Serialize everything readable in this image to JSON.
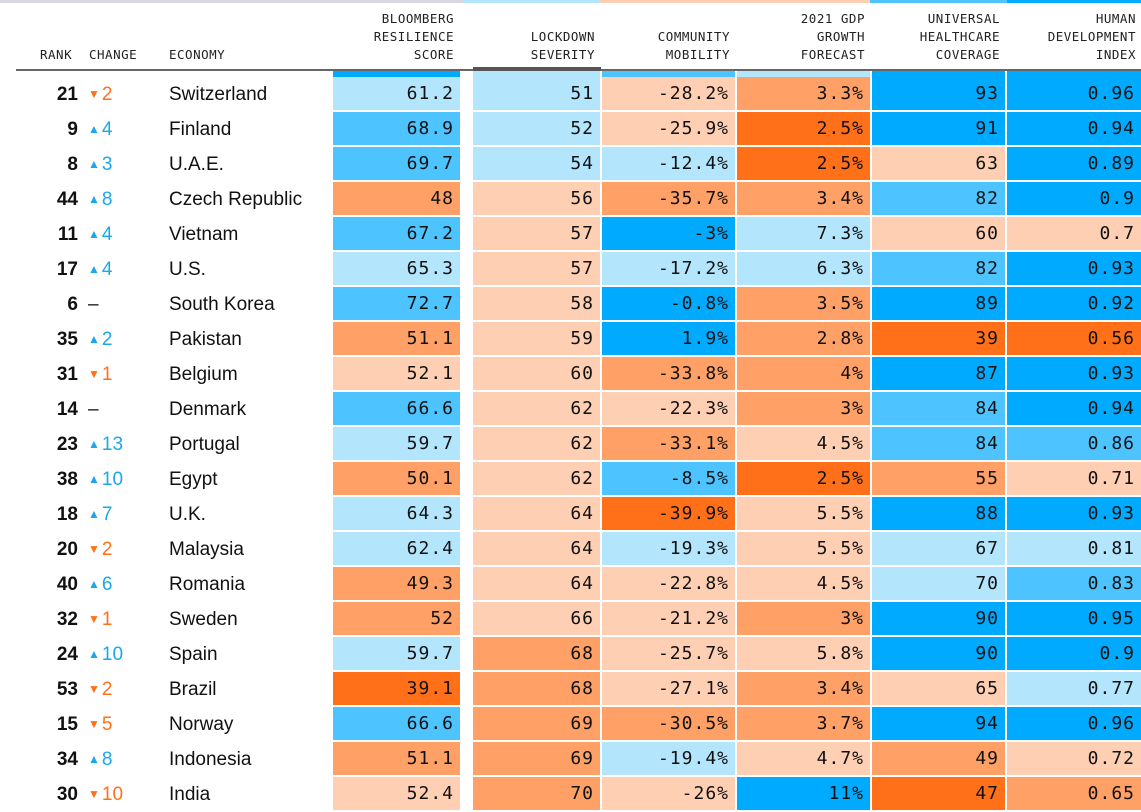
{
  "palette": {
    "blue_dark": "#00aaff",
    "blue_mid": "#4dc3ff",
    "blue_light": "#b3e5fc",
    "orange_light": "#ffcfb3",
    "orange_mid": "#ffa066",
    "orange_dark": "#ff7019",
    "up_color": "#1aa7ec",
    "down_color": "#ff7019"
  },
  "header": {
    "rank": "RANK",
    "change": "CHANGE",
    "economy": "ECONOMY",
    "score": "BLOOMBERG\nRESILIENCE\nSCORE",
    "lockdown": "LOCKDOWN\nSEVERITY",
    "mobility": "COMMUNITY\nMOBILITY",
    "gdp": "2021 GDP\nGROWTH\nFORECAST",
    "uhc": "UNIVERSAL\nHEALTHCARE\nCOVERAGE",
    "hdi": "HUMAN\nDEVELOPMENT\nINDEX"
  },
  "sorted_column": "lockdown",
  "top_strip_colors": [
    "#d8d8de",
    "#b3e5fc",
    "#ffcfb3",
    "#ffcfb3",
    "#4dc3ff",
    "#00aaff"
  ],
  "header_bar_colors": [
    "#00aaff",
    "#b3e5fc",
    "#4dc3ff",
    "#b3e5fc",
    "#00aaff",
    "#00aaff"
  ],
  "rows": [
    {
      "rank": "21",
      "dir": "down",
      "change": "2",
      "economy": "Switzerland",
      "cells": [
        [
          "61.2",
          "blue_light"
        ],
        [
          "51",
          "blue_light"
        ],
        [
          "-28.2%",
          "orange_light"
        ],
        [
          "3.3%",
          "orange_mid"
        ],
        [
          "93",
          "blue_dark"
        ],
        [
          "0.96",
          "blue_dark"
        ]
      ]
    },
    {
      "rank": "9",
      "dir": "up",
      "change": "4",
      "economy": "Finland",
      "cells": [
        [
          "68.9",
          "blue_mid"
        ],
        [
          "52",
          "blue_light"
        ],
        [
          "-25.9%",
          "orange_light"
        ],
        [
          "2.5%",
          "orange_dark"
        ],
        [
          "91",
          "blue_dark"
        ],
        [
          "0.94",
          "blue_dark"
        ]
      ]
    },
    {
      "rank": "8",
      "dir": "up",
      "change": "3",
      "economy": "U.A.E.",
      "cells": [
        [
          "69.7",
          "blue_mid"
        ],
        [
          "54",
          "blue_light"
        ],
        [
          "-12.4%",
          "blue_light"
        ],
        [
          "2.5%",
          "orange_dark"
        ],
        [
          "63",
          "orange_light"
        ],
        [
          "0.89",
          "blue_dark"
        ]
      ]
    },
    {
      "rank": "44",
      "dir": "up",
      "change": "8",
      "economy": "Czech Republic",
      "cells": [
        [
          "48",
          "orange_mid"
        ],
        [
          "56",
          "orange_light"
        ],
        [
          "-35.7%",
          "orange_mid"
        ],
        [
          "3.4%",
          "orange_mid"
        ],
        [
          "82",
          "blue_mid"
        ],
        [
          "0.9",
          "blue_dark"
        ]
      ]
    },
    {
      "rank": "11",
      "dir": "up",
      "change": "4",
      "economy": "Vietnam",
      "cells": [
        [
          "67.2",
          "blue_mid"
        ],
        [
          "57",
          "orange_light"
        ],
        [
          "-3%",
          "blue_dark"
        ],
        [
          "7.3%",
          "blue_light"
        ],
        [
          "60",
          "orange_light"
        ],
        [
          "0.7",
          "orange_light"
        ]
      ]
    },
    {
      "rank": "17",
      "dir": "up",
      "change": "4",
      "economy": "U.S.",
      "cells": [
        [
          "65.3",
          "blue_light"
        ],
        [
          "57",
          "orange_light"
        ],
        [
          "-17.2%",
          "blue_light"
        ],
        [
          "6.3%",
          "blue_light"
        ],
        [
          "82",
          "blue_mid"
        ],
        [
          "0.93",
          "blue_dark"
        ]
      ]
    },
    {
      "rank": "6",
      "dir": "same",
      "change": "–",
      "economy": "South Korea",
      "cells": [
        [
          "72.7",
          "blue_mid"
        ],
        [
          "58",
          "orange_light"
        ],
        [
          "-0.8%",
          "blue_dark"
        ],
        [
          "3.5%",
          "orange_mid"
        ],
        [
          "89",
          "blue_dark"
        ],
        [
          "0.92",
          "blue_dark"
        ]
      ]
    },
    {
      "rank": "35",
      "dir": "up",
      "change": "2",
      "economy": "Pakistan",
      "cells": [
        [
          "51.1",
          "orange_mid"
        ],
        [
          "59",
          "orange_light"
        ],
        [
          "1.9%",
          "blue_dark"
        ],
        [
          "2.8%",
          "orange_mid"
        ],
        [
          "39",
          "orange_dark"
        ],
        [
          "0.56",
          "orange_dark"
        ]
      ]
    },
    {
      "rank": "31",
      "dir": "down",
      "change": "1",
      "economy": "Belgium",
      "cells": [
        [
          "52.1",
          "orange_light"
        ],
        [
          "60",
          "orange_light"
        ],
        [
          "-33.8%",
          "orange_mid"
        ],
        [
          "4%",
          "orange_mid"
        ],
        [
          "87",
          "blue_dark"
        ],
        [
          "0.93",
          "blue_dark"
        ]
      ]
    },
    {
      "rank": "14",
      "dir": "same",
      "change": "–",
      "economy": "Denmark",
      "cells": [
        [
          "66.6",
          "blue_mid"
        ],
        [
          "62",
          "orange_light"
        ],
        [
          "-22.3%",
          "orange_light"
        ],
        [
          "3%",
          "orange_mid"
        ],
        [
          "84",
          "blue_mid"
        ],
        [
          "0.94",
          "blue_dark"
        ]
      ]
    },
    {
      "rank": "23",
      "dir": "up",
      "change": "13",
      "economy": "Portugal",
      "cells": [
        [
          "59.7",
          "blue_light"
        ],
        [
          "62",
          "orange_light"
        ],
        [
          "-33.1%",
          "orange_mid"
        ],
        [
          "4.5%",
          "orange_light"
        ],
        [
          "84",
          "blue_mid"
        ],
        [
          "0.86",
          "blue_mid"
        ]
      ]
    },
    {
      "rank": "38",
      "dir": "up",
      "change": "10",
      "economy": "Egypt",
      "cells": [
        [
          "50.1",
          "orange_mid"
        ],
        [
          "62",
          "orange_light"
        ],
        [
          "-8.5%",
          "blue_mid"
        ],
        [
          "2.5%",
          "orange_dark"
        ],
        [
          "55",
          "orange_mid"
        ],
        [
          "0.71",
          "orange_light"
        ]
      ]
    },
    {
      "rank": "18",
      "dir": "up",
      "change": "7",
      "economy": "U.K.",
      "cells": [
        [
          "64.3",
          "blue_light"
        ],
        [
          "64",
          "orange_light"
        ],
        [
          "-39.9%",
          "orange_dark"
        ],
        [
          "5.5%",
          "orange_light"
        ],
        [
          "88",
          "blue_dark"
        ],
        [
          "0.93",
          "blue_dark"
        ]
      ]
    },
    {
      "rank": "20",
      "dir": "down",
      "change": "2",
      "economy": "Malaysia",
      "cells": [
        [
          "62.4",
          "blue_light"
        ],
        [
          "64",
          "orange_light"
        ],
        [
          "-19.3%",
          "blue_light"
        ],
        [
          "5.5%",
          "orange_light"
        ],
        [
          "67",
          "blue_light"
        ],
        [
          "0.81",
          "blue_light"
        ]
      ]
    },
    {
      "rank": "40",
      "dir": "up",
      "change": "6",
      "economy": "Romania",
      "cells": [
        [
          "49.3",
          "orange_mid"
        ],
        [
          "64",
          "orange_light"
        ],
        [
          "-22.8%",
          "orange_light"
        ],
        [
          "4.5%",
          "orange_light"
        ],
        [
          "70",
          "blue_light"
        ],
        [
          "0.83",
          "blue_mid"
        ]
      ]
    },
    {
      "rank": "32",
      "dir": "down",
      "change": "1",
      "economy": "Sweden",
      "cells": [
        [
          "52",
          "orange_mid"
        ],
        [
          "66",
          "orange_light"
        ],
        [
          "-21.2%",
          "orange_light"
        ],
        [
          "3%",
          "orange_mid"
        ],
        [
          "90",
          "blue_dark"
        ],
        [
          "0.95",
          "blue_dark"
        ]
      ]
    },
    {
      "rank": "24",
      "dir": "up",
      "change": "10",
      "economy": "Spain",
      "cells": [
        [
          "59.7",
          "blue_light"
        ],
        [
          "68",
          "orange_mid"
        ],
        [
          "-25.7%",
          "orange_light"
        ],
        [
          "5.8%",
          "orange_light"
        ],
        [
          "90",
          "blue_dark"
        ],
        [
          "0.9",
          "blue_dark"
        ]
      ]
    },
    {
      "rank": "53",
      "dir": "down",
      "change": "2",
      "economy": "Brazil",
      "cells": [
        [
          "39.1",
          "orange_dark"
        ],
        [
          "68",
          "orange_mid"
        ],
        [
          "-27.1%",
          "orange_light"
        ],
        [
          "3.4%",
          "orange_mid"
        ],
        [
          "65",
          "orange_light"
        ],
        [
          "0.77",
          "blue_light"
        ]
      ]
    },
    {
      "rank": "15",
      "dir": "down",
      "change": "5",
      "economy": "Norway",
      "cells": [
        [
          "66.6",
          "blue_mid"
        ],
        [
          "69",
          "orange_mid"
        ],
        [
          "-30.5%",
          "orange_mid"
        ],
        [
          "3.7%",
          "orange_mid"
        ],
        [
          "94",
          "blue_dark"
        ],
        [
          "0.96",
          "blue_dark"
        ]
      ]
    },
    {
      "rank": "34",
      "dir": "up",
      "change": "8",
      "economy": "Indonesia",
      "cells": [
        [
          "51.1",
          "orange_mid"
        ],
        [
          "69",
          "orange_mid"
        ],
        [
          "-19.4%",
          "blue_light"
        ],
        [
          "4.7%",
          "orange_light"
        ],
        [
          "49",
          "orange_mid"
        ],
        [
          "0.72",
          "orange_light"
        ]
      ]
    },
    {
      "rank": "30",
      "dir": "down",
      "change": "10",
      "economy": "India",
      "cells": [
        [
          "52.4",
          "orange_light"
        ],
        [
          "70",
          "orange_mid"
        ],
        [
          "-26%",
          "orange_light"
        ],
        [
          "11%",
          "blue_dark"
        ],
        [
          "47",
          "orange_dark"
        ],
        [
          "0.65",
          "orange_mid"
        ]
      ]
    }
  ],
  "arrows": {
    "up": "▲",
    "down": "▼",
    "same": ""
  }
}
